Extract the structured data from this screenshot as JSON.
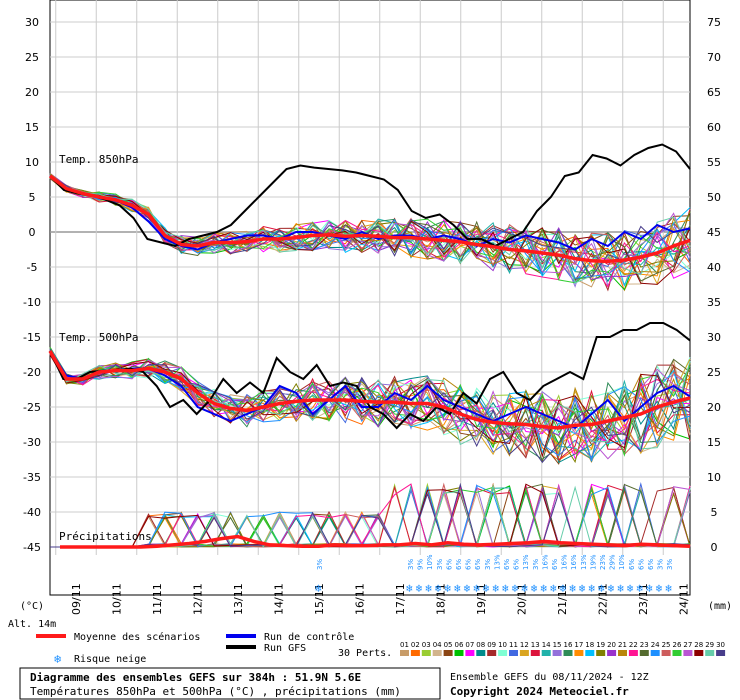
{
  "chart_data": {
    "type": "line",
    "dates": [
      "09/11",
      "10/11",
      "11/11",
      "12/11",
      "13/11",
      "14/11",
      "15/11",
      "16/11",
      "17/11",
      "18/11",
      "19/11",
      "20/11",
      "21/11",
      "22/11",
      "23/11",
      "24/11"
    ],
    "y_left": {
      "unit": "(°C)",
      "ticks": [
        30,
        25,
        20,
        15,
        10,
        5,
        0,
        -5,
        -10,
        -15,
        -20,
        -25,
        -30,
        -35,
        -40,
        -45
      ],
      "range": [
        -45,
        30
      ]
    },
    "y_right": {
      "unit": "(mm)",
      "ticks": [
        75,
        70,
        65,
        60,
        55,
        50,
        45,
        40,
        35,
        30,
        25,
        20,
        15,
        10,
        5,
        0
      ],
      "range": [
        0,
        75
      ]
    },
    "altitude_label": "Alt. 14m",
    "panel_labels": {
      "t850": "Temp. 850hPa",
      "t500": "Temp. 500hPa",
      "precip": "Précipitations"
    },
    "t850": {
      "mean": [
        8,
        6.2,
        5.5,
        5,
        4.6,
        3.8,
        2.5,
        -0.5,
        -1.8,
        -2,
        -1.5,
        -1.5,
        -1.4,
        -1,
        -1,
        -0.8,
        -0.5,
        -0.4,
        -0.6,
        -0.5,
        -0.6,
        -0.8,
        -0.8,
        -1,
        -1.2,
        -1.4,
        -1.8,
        -2.1,
        -2.5,
        -2.7,
        -3,
        -3.3,
        -3.8,
        -4.1,
        -4.2,
        -4,
        -3.6,
        -3,
        -2,
        -1.2
      ],
      "control": [
        8,
        6,
        5.5,
        5,
        4.5,
        3.5,
        1.5,
        -1,
        -2,
        -2.5,
        -1.5,
        -1,
        -0.5,
        -0.5,
        -1,
        0,
        0,
        -0.5,
        -1,
        0,
        -1,
        -0.5,
        -0.5,
        -1,
        -0.5,
        -1,
        -2,
        -1,
        -1.5,
        -0.5,
        -1,
        -1.5,
        -2.5,
        -1,
        -2,
        0,
        -1,
        1,
        0,
        0.5
      ],
      "gfs": [
        8,
        6,
        5.5,
        5.2,
        4.6,
        3.8,
        2,
        -1,
        -1.5,
        -2,
        -1,
        -0.5,
        0,
        1,
        3,
        5,
        7,
        9,
        9.5,
        9.2,
        9,
        8.8,
        8.5,
        8,
        7.5,
        6,
        3,
        2,
        2.5,
        1,
        -1,
        -1,
        -2,
        -1,
        0,
        3,
        5,
        8,
        8.5,
        11,
        10.5,
        9.5,
        11,
        12,
        12.5,
        11.5,
        9
      ]
    },
    "t500": {
      "mean": [
        -17,
        -21,
        -21,
        -20,
        -19.8,
        -19.8,
        -19.5,
        -20,
        -21,
        -23,
        -24.5,
        -25.2,
        -25.5,
        -25,
        -24.5,
        -24.2,
        -24,
        -24,
        -24,
        -24.2,
        -24.3,
        -24.3,
        -24.5,
        -24.5,
        -25,
        -26,
        -26.8,
        -27.2,
        -27.4,
        -27.5,
        -27.8,
        -28,
        -27.6,
        -27.5,
        -27,
        -26.5,
        -26,
        -25,
        -24.3,
        -23.7
      ],
      "control": [
        -17,
        -20.5,
        -21,
        -20,
        -19.8,
        -19.5,
        -19.5,
        -20.5,
        -22,
        -25,
        -26,
        -27,
        -26,
        -25,
        -22,
        -23,
        -26,
        -24,
        -22,
        -25,
        -25,
        -23,
        -24,
        -22,
        -24,
        -25,
        -26,
        -27,
        -26,
        -25,
        -26,
        -27,
        -28,
        -26,
        -24,
        -27,
        -25,
        -23,
        -22,
        -23.5
      ],
      "gfs": [
        -17,
        -21,
        -21,
        -20,
        -19.8,
        -19.8,
        -19.5,
        -20,
        -22,
        -25,
        -24,
        -26,
        -24,
        -21,
        -23,
        -21.5,
        -23,
        -18,
        -20,
        -21,
        -19,
        -22,
        -21.5,
        -22,
        -25,
        -26,
        -28,
        -26,
        -27,
        -25,
        -26,
        -23,
        -24.5,
        -21,
        -20,
        -23,
        -24,
        -22,
        -21,
        -20,
        -21,
        -15,
        -15,
        -14,
        -14,
        -13,
        -13,
        -14,
        -15.5
      ]
    },
    "precip": {
      "mean": [
        0,
        0,
        0,
        0,
        0,
        0,
        0.1,
        0.3,
        0.5,
        0.8,
        1.2,
        1.5,
        0.8,
        0.3,
        0.2,
        0.1,
        0.1,
        0.3,
        0.2,
        0.2,
        0.3,
        0.3,
        0.5,
        0.3,
        0.6,
        0.4,
        0.3,
        0.4,
        0.5,
        0.6,
        0.8,
        0.6,
        0.5,
        0.4,
        0.3,
        0.2,
        0.4,
        0.3,
        0.2,
        0.1
      ]
    },
    "snow_risk": {
      "labels": [
        "3%",
        "3%",
        "9%",
        "10%",
        "3%",
        "6%",
        "6%",
        "6%",
        "6%",
        "3%",
        "13%",
        "6%",
        "6%",
        "13%",
        "3%",
        "16%",
        "6%",
        "16%",
        "16%",
        "13%",
        "19%",
        "23%",
        "29%",
        "10%",
        "6%",
        "6%",
        "6%",
        "3%",
        "3%"
      ]
    },
    "legend": {
      "mean": "Moyenne des scénarios",
      "control": "Run de contrôle",
      "gfs": "Run GFS",
      "snow": "Risque neige",
      "perts": "30 Perts.",
      "pert_ids": [
        "01",
        "02",
        "03",
        "04",
        "05",
        "06",
        "07",
        "08",
        "09",
        "10",
        "11",
        "12",
        "13",
        "14",
        "15",
        "16",
        "17",
        "18",
        "19",
        "20",
        "21",
        "22",
        "23",
        "24",
        "25",
        "26",
        "27",
        "28",
        "29",
        "30"
      ],
      "pert_colors": [
        "#c89c68",
        "#ff6a00",
        "#9acd32",
        "#d2b48c",
        "#8b4513",
        "#00c000",
        "#ff00ff",
        "#008b8b",
        "#a52a2a",
        "#7fffd4",
        "#4169e1",
        "#daa520",
        "#dc143c",
        "#20b2aa",
        "#9370db",
        "#2e8b57",
        "#ff8c00",
        "#00bfff",
        "#808000",
        "#9932cc",
        "#b8860b",
        "#ff1493",
        "#556b2f",
        "#1e90ff",
        "#cd5c5c",
        "#32cd32",
        "#ba55d3",
        "#8b0000",
        "#66cdaa",
        "#483d8b"
      ]
    },
    "colors": {
      "mean": "#ff1a1a",
      "control": "#0000ee",
      "gfs": "#000000"
    }
  },
  "footer": {
    "title": "Diagramme des ensembles GEFS sur 384h : 51.9N 5.6E",
    "subtitle": "Températures 850hPa et 500hPa (°C) , précipitations (mm)",
    "run": "Ensemble GEFS du 08/11/2024 - 12Z",
    "copyright": "Copyright 2024 Meteociel.fr"
  }
}
